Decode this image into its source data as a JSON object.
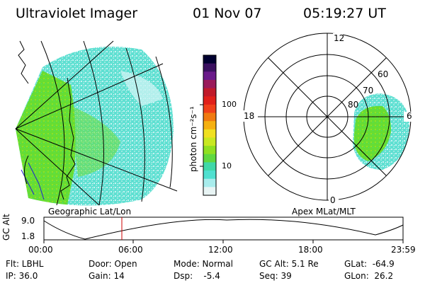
{
  "header": {
    "title": "Ultraviolet Imager",
    "date": "01 Nov 07",
    "time": "05:19:27 UT"
  },
  "colorbar": {
    "unit_label": "photon cm⁻²s⁻¹",
    "ticks": [
      "100",
      "10"
    ],
    "colors": [
      "#000030",
      "#3a1060",
      "#6a1a8a",
      "#9a1a5a",
      "#c01a2a",
      "#e0201a",
      "#f0401a",
      "#f07a10",
      "#f5b010",
      "#f0e020",
      "#c8e820",
      "#90e020",
      "#60d840",
      "#40d8a8",
      "#50e0d0",
      "#a8ecec",
      "#e8f4f4"
    ],
    "scale": "log"
  },
  "left_panel": {
    "label": "Geographic Lat/Lon",
    "mask_colors": {
      "green": "#66dd33",
      "cyan": "#33e0d0",
      "pale": "#c8f2f2"
    }
  },
  "right_panel": {
    "label": "Apex  MLat/MLT",
    "mlt_labels": {
      "top": "12",
      "left": "18",
      "right": "6",
      "bottom": "0"
    },
    "lat_labels": [
      "60",
      "70",
      "80"
    ]
  },
  "timeline": {
    "y_axis_label": "GC Alt",
    "y_ticks": [
      "9.0",
      "1.8"
    ],
    "x_ticks": [
      "00:00",
      "06:00",
      "12:00",
      "18:00",
      "23:59"
    ],
    "marker_color": "#cc0000"
  },
  "footer": {
    "flt": "Flt: LBHL",
    "ip": "IP: 36.0",
    "door": "Door: Open",
    "gain": "Gain: 14",
    "mode": "Mode: Normal",
    "dsp": "Dsp:    -5.4",
    "gcalt": "GC Alt: 5.1 Re",
    "seq": "Seq: 39",
    "glat": "GLat:  -64.9",
    "glon": "GLon:  26.2"
  }
}
